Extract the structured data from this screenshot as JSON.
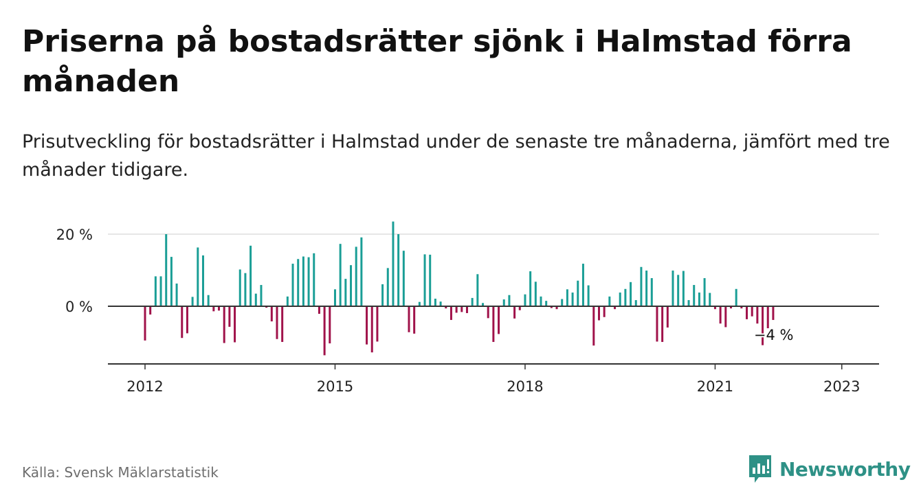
{
  "header": {
    "title": "Priserna på bostadsrätter sjönk i Halmstad förra månaden",
    "subtitle": "Prisutveckling för bostadsrätter i Halmstad under de senaste tre månaderna, jämfört med tre månader tidigare."
  },
  "footer": {
    "source": "Källa: Svensk Mäklarstatistik",
    "brand": "Newsworthy",
    "brand_icon": "newsworthy-logo-icon"
  },
  "colors": {
    "positive": "#1a9e96",
    "negative": "#a0124a",
    "grid": "#dddddd",
    "axis": "#333333",
    "text": "#222222",
    "brand": "#2e9186"
  },
  "chart_data": {
    "type": "bar",
    "title": "Priserna på bostadsrätter sjönk i Halmstad förra månaden",
    "subtitle": "Prisutveckling för bostadsrätter i Halmstad under de senaste tre månaderna, jämfört med tre månader tidigare.",
    "unit": "%",
    "ylim": [
      -16,
      24
    ],
    "yticks": [
      0,
      20
    ],
    "ytick_labels": [
      "0 %",
      "20 %"
    ],
    "xticks": [
      "2012-01",
      "2015-01",
      "2018-01",
      "2021-01",
      "2023-01"
    ],
    "xtick_labels": [
      "2012",
      "2015",
      "2018",
      "2021",
      "2023"
    ],
    "grid": true,
    "last_value_label": "−4 %",
    "series": [
      {
        "points": [
          [
            "2012-01",
            -9.5
          ],
          [
            "2012-02",
            -2.3
          ],
          [
            "2012-03",
            8.3
          ],
          [
            "2012-04",
            8.3
          ],
          [
            "2012-05",
            20.0
          ],
          [
            "2012-06",
            13.7
          ],
          [
            "2012-07",
            6.3
          ],
          [
            "2012-08",
            -8.8
          ],
          [
            "2012-09",
            -7.5
          ],
          [
            "2012-10",
            2.6
          ],
          [
            "2012-11",
            16.3
          ],
          [
            "2012-12",
            14.1
          ],
          [
            "2013-01",
            3.1
          ],
          [
            "2013-02",
            -1.4
          ],
          [
            "2013-03",
            -1.2
          ],
          [
            "2013-04",
            -10.2
          ],
          [
            "2013-05",
            -5.7
          ],
          [
            "2013-06",
            -10.0
          ],
          [
            "2013-07",
            10.2
          ],
          [
            "2013-08",
            9.2
          ],
          [
            "2013-09",
            16.8
          ],
          [
            "2013-10",
            3.5
          ],
          [
            "2013-11",
            5.9
          ],
          [
            "2013-12",
            -0.4
          ],
          [
            "2014-01",
            -4.2
          ],
          [
            "2014-02",
            -9.1
          ],
          [
            "2014-03",
            -9.9
          ],
          [
            "2014-04",
            2.7
          ],
          [
            "2014-05",
            11.8
          ],
          [
            "2014-06",
            13.1
          ],
          [
            "2014-07",
            13.8
          ],
          [
            "2014-08",
            13.6
          ],
          [
            "2014-09",
            14.7
          ],
          [
            "2014-10",
            -2.1
          ],
          [
            "2014-11",
            -13.6
          ],
          [
            "2014-12",
            -10.3
          ],
          [
            "2015-01",
            4.7
          ],
          [
            "2015-02",
            17.3
          ],
          [
            "2015-03",
            7.6
          ],
          [
            "2015-04",
            11.4
          ],
          [
            "2015-05",
            16.5
          ],
          [
            "2015-06",
            19.1
          ],
          [
            "2015-07",
            -10.6
          ],
          [
            "2015-08",
            -12.8
          ],
          [
            "2015-09",
            -9.8
          ],
          [
            "2015-10",
            6.1
          ],
          [
            "2015-11",
            10.6
          ],
          [
            "2015-12",
            23.5
          ],
          [
            "2016-01",
            20.0
          ],
          [
            "2016-02",
            15.4
          ],
          [
            "2016-03",
            -7.2
          ],
          [
            "2016-04",
            -7.6
          ],
          [
            "2016-05",
            1.2
          ],
          [
            "2016-06",
            14.4
          ],
          [
            "2016-07",
            14.3
          ],
          [
            "2016-08",
            2.1
          ],
          [
            "2016-09",
            1.3
          ],
          [
            "2016-10",
            -0.6
          ],
          [
            "2016-11",
            -3.8
          ],
          [
            "2016-12",
            -1.8
          ],
          [
            "2017-01",
            -1.6
          ],
          [
            "2017-02",
            -1.9
          ],
          [
            "2017-03",
            2.3
          ],
          [
            "2017-04",
            8.9
          ],
          [
            "2017-05",
            0.9
          ],
          [
            "2017-06",
            -3.3
          ],
          [
            "2017-07",
            -9.9
          ],
          [
            "2017-08",
            -7.7
          ],
          [
            "2017-09",
            1.9
          ],
          [
            "2017-10",
            3.1
          ],
          [
            "2017-11",
            -3.4
          ],
          [
            "2017-12",
            -1.1
          ],
          [
            "2018-01",
            3.3
          ],
          [
            "2018-02",
            9.7
          ],
          [
            "2018-03",
            6.8
          ],
          [
            "2018-04",
            2.7
          ],
          [
            "2018-05",
            1.5
          ],
          [
            "2018-06",
            -0.5
          ],
          [
            "2018-07",
            -0.8
          ],
          [
            "2018-08",
            2.0
          ],
          [
            "2018-09",
            4.7
          ],
          [
            "2018-10",
            3.8
          ],
          [
            "2018-11",
            7.1
          ],
          [
            "2018-12",
            11.8
          ],
          [
            "2019-01",
            5.8
          ],
          [
            "2019-02",
            -10.9
          ],
          [
            "2019-03",
            -3.9
          ],
          [
            "2019-04",
            -3.0
          ],
          [
            "2019-05",
            2.7
          ],
          [
            "2019-06",
            -0.8
          ],
          [
            "2019-07",
            3.8
          ],
          [
            "2019-08",
            4.8
          ],
          [
            "2019-09",
            6.7
          ],
          [
            "2019-10",
            1.7
          ],
          [
            "2019-11",
            10.9
          ],
          [
            "2019-12",
            9.9
          ],
          [
            "2020-01",
            7.8
          ],
          [
            "2020-02",
            -9.8
          ],
          [
            "2020-03",
            -9.9
          ],
          [
            "2020-04",
            -5.9
          ],
          [
            "2020-05",
            9.9
          ],
          [
            "2020-06",
            8.7
          ],
          [
            "2020-07",
            9.8
          ],
          [
            "2020-08",
            1.7
          ],
          [
            "2020-09",
            5.9
          ],
          [
            "2020-10",
            3.8
          ],
          [
            "2020-11",
            7.8
          ],
          [
            "2020-12",
            3.7
          ],
          [
            "2021-01",
            -0.8
          ],
          [
            "2021-02",
            -4.8
          ],
          [
            "2021-03",
            -5.8
          ],
          [
            "2021-04",
            -0.6
          ],
          [
            "2021-05",
            4.8
          ],
          [
            "2021-06",
            -0.6
          ],
          [
            "2021-07",
            -3.6
          ],
          [
            "2021-08",
            -2.8
          ],
          [
            "2021-09",
            -4.8
          ],
          [
            "2021-10",
            -10.8
          ],
          [
            "2021-11",
            -6.1
          ],
          [
            "2021-12",
            -3.8
          ]
        ]
      }
    ]
  }
}
